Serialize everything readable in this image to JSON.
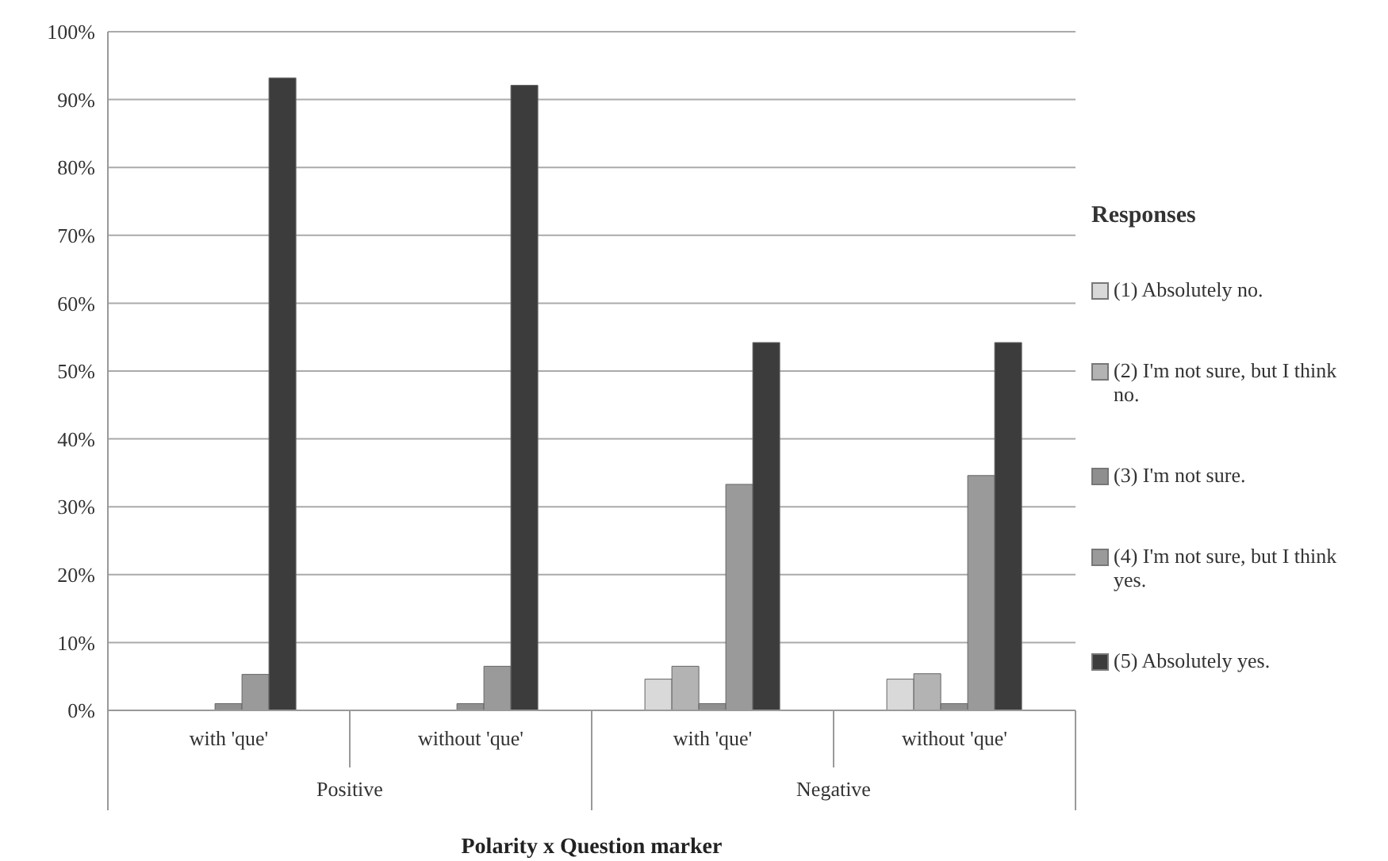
{
  "chart_data": {
    "type": "bar",
    "xlabel": "Polarity  x  Question marker",
    "legend_title": "Responses",
    "categories": [
      "with 'que'",
      "without 'que'",
      "with 'que'",
      "without 'que'"
    ],
    "series": [
      {
        "name": "(1) Absolutely no.",
        "color": "#d9d9d9",
        "values": [
          0,
          0,
          4.6,
          4.6
        ]
      },
      {
        "name": "(2) I'm not sure, but I think no.",
        "color": "#b3b3b3",
        "values": [
          0,
          0,
          6.5,
          5.4
        ]
      },
      {
        "name": "(3) I'm not sure.",
        "color": "#8f8f8f",
        "values": [
          1,
          1,
          1,
          1
        ]
      },
      {
        "name": "(4) I'm not sure, but I think yes.",
        "color": "#9a9a9a",
        "values": [
          5.3,
          6.5,
          33.3,
          34.6
        ]
      },
      {
        "name": "(5) Absolutely yes.",
        "color": "#3c3c3c",
        "values": [
          93.2,
          92.1,
          54.2,
          54.2
        ]
      }
    ],
    "annotations": [
      "Positive",
      "Negative"
    ],
    "ylim": [
      0,
      100
    ],
    "yticks": [
      {
        "value": 0,
        "label": "0%"
      },
      {
        "value": 10,
        "label": "10%"
      },
      {
        "value": 20,
        "label": "20%"
      },
      {
        "value": 30,
        "label": "30%"
      },
      {
        "value": 40,
        "label": "40%"
      },
      {
        "value": 50,
        "label": "50%"
      },
      {
        "value": 60,
        "label": "60%"
      },
      {
        "value": 70,
        "label": "70%"
      },
      {
        "value": 80,
        "label": "80%"
      },
      {
        "value": 90,
        "label": "90%"
      },
      {
        "value": 100,
        "label": "100%"
      }
    ],
    "grid": "y",
    "legend": "right"
  }
}
